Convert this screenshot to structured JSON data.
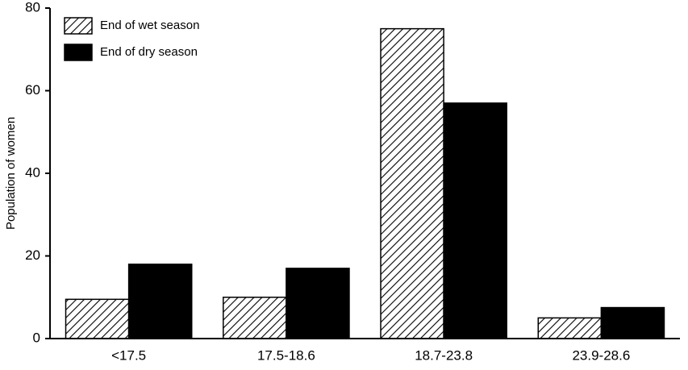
{
  "chart_data": {
    "type": "bar",
    "y_label": "Population of women",
    "categories": [
      "<17.5",
      "17.5-18.6",
      "18.7-23.8",
      "23.9-28.6"
    ],
    "series": [
      {
        "name": "End of wet season",
        "color": "#000000",
        "pattern": "hatch",
        "values": [
          9.5,
          10,
          75,
          5
        ]
      },
      {
        "name": "End of dry season",
        "color": "#000000",
        "pattern": "solid",
        "values": [
          18,
          17,
          57,
          7.5
        ]
      }
    ],
    "ylim": [
      0,
      80
    ],
    "yticks": [
      0,
      20,
      40,
      60,
      80
    ],
    "grid": false,
    "legend": "top-left"
  }
}
